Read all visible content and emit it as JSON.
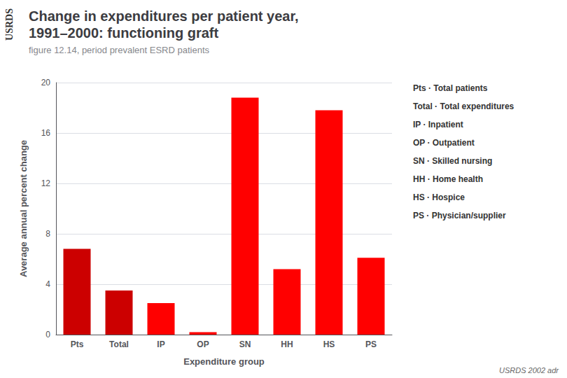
{
  "chart_data": {
    "type": "bar",
    "title": "Change in expenditures per patient year,\n1991–2000: functioning graft",
    "subtitle": "figure 12.14, period prevalent ESRD patients",
    "categories": [
      "Pts",
      "Total",
      "IP",
      "OP",
      "SN",
      "HH",
      "HS",
      "PS"
    ],
    "values": [
      6.8,
      3.5,
      2.5,
      0.2,
      18.8,
      5.2,
      17.8,
      6.1
    ],
    "colors": [
      "#cc0000",
      "#cc0000",
      "#ff0000",
      "#ff0000",
      "#ff0000",
      "#ff0000",
      "#ff0000",
      "#ff0000"
    ],
    "xlabel": "Expenditure group",
    "ylabel": "Average annual percent change",
    "ylim": [
      0,
      20
    ],
    "yticks": [
      0,
      4,
      8,
      12,
      16,
      20
    ],
    "grid": true,
    "annotations": [
      "USRDS",
      "Pts · Total patients",
      "Total · Total expenditures",
      "IP · Inpatient",
      "OP · Outpatient",
      "SN · Skilled nursing",
      "HH · Home health",
      "HS · Hospice",
      "PS · Physician/supplier",
      "USRDS 2002 adr"
    ]
  }
}
